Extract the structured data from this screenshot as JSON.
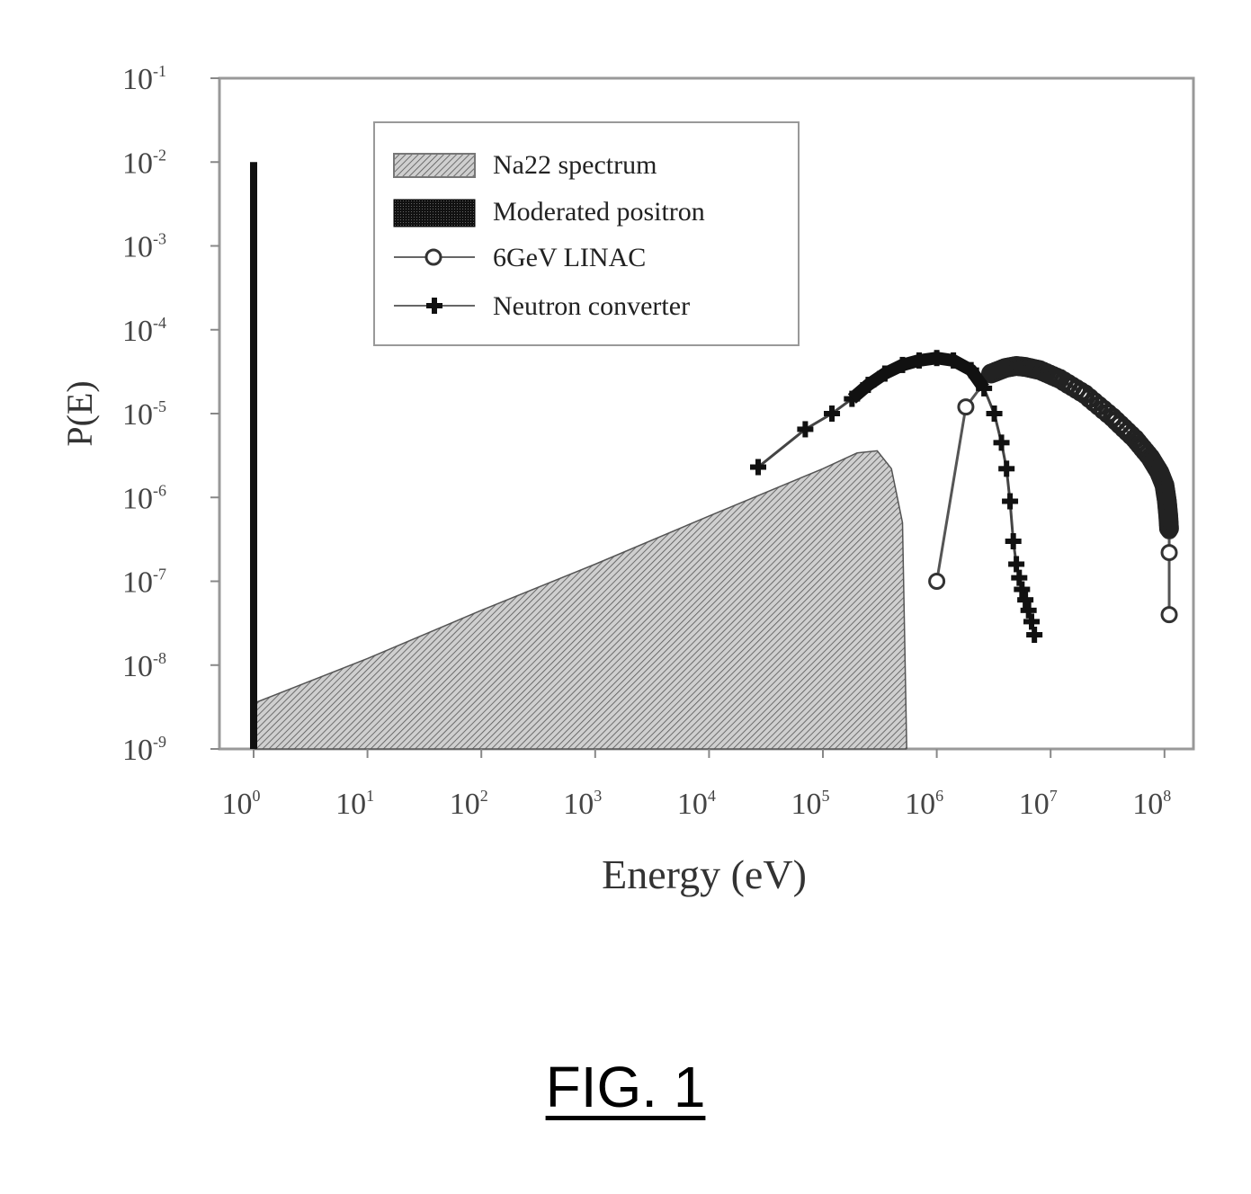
{
  "figure": {
    "label": "FIG. 1"
  },
  "chart_data": {
    "type": "line",
    "title": "",
    "xlabel": "Energy (eV)",
    "ylabel": "P(E)",
    "xscale": "log",
    "yscale": "log",
    "xlim": [
      1,
      100000000
    ],
    "ylim": [
      1e-09,
      0.1
    ],
    "x_tick_labels": [
      "10^0",
      "10^1",
      "10^2",
      "10^3",
      "10^4",
      "10^5",
      "10^6",
      "10^7",
      "10^8"
    ],
    "y_tick_labels": [
      "10^-1",
      "10^-2",
      "10^-3",
      "10^-4",
      "10^-5",
      "10^-6",
      "10^-7",
      "10^-8",
      "10^-9"
    ],
    "grid": false,
    "legend_position": "upper center",
    "legend": [
      "Na22 spectrum",
      "Moderated positron",
      "6GeV LINAC",
      "Neutron converter"
    ],
    "series": [
      {
        "name": "Na22 spectrum",
        "style": "hatched-area",
        "x": [
          1,
          10,
          100,
          1000,
          10000,
          100000,
          200000,
          300000,
          400000,
          500000,
          545000
        ],
        "y": [
          3.5e-09,
          1.2e-08,
          4.5e-08,
          1.6e-07,
          6e-07,
          2.2e-06,
          3.4e-06,
          3.6e-06,
          2.2e-06,
          5e-07,
          1e-09
        ]
      },
      {
        "name": "Moderated positron",
        "style": "bar",
        "x": [
          1,
          1
        ],
        "y": [
          1e-09,
          0.01
        ]
      },
      {
        "name": "6GeV LINAC",
        "style": "line-circle",
        "x": [
          1000000,
          1800000,
          3000000,
          4000000,
          5000000,
          6000000,
          8000000,
          12000000,
          20000000,
          35000000,
          55000000,
          75000000,
          90000000,
          100000000,
          105000000,
          108000000,
          110000000,
          110000000,
          110000000
        ],
        "y": [
          1e-07,
          1.2e-05,
          3e-05,
          3.5e-05,
          3.7e-05,
          3.6e-05,
          3.3e-05,
          2.6e-05,
          1.7e-05,
          9e-06,
          5e-06,
          3e-06,
          2e-06,
          1.4e-06,
          9e-07,
          6e-07,
          4e-07,
          2.2e-07,
          4e-08
        ]
      },
      {
        "name": "Neutron converter",
        "style": "line-plus",
        "x": [
          27000,
          70000,
          120000,
          180000,
          250000,
          350000,
          500000,
          700000,
          1000000,
          1400000,
          2000000,
          2600000,
          3200000,
          3700000,
          4100000,
          4400000,
          4700000,
          5000000,
          5300000,
          5600000,
          6000000,
          6400000,
          6800000,
          7200000
        ],
        "y": [
          2.3e-06,
          6.5e-06,
          1e-05,
          1.5e-05,
          2.2e-05,
          3e-05,
          3.8e-05,
          4.3e-05,
          4.6e-05,
          4.3e-05,
          3.3e-05,
          2e-05,
          1e-05,
          4.5e-06,
          2.2e-06,
          9e-07,
          3e-07,
          1.6e-07,
          1.1e-07,
          8e-08,
          6e-08,
          4.5e-08,
          3.3e-08,
          2.3e-08
        ]
      }
    ]
  }
}
